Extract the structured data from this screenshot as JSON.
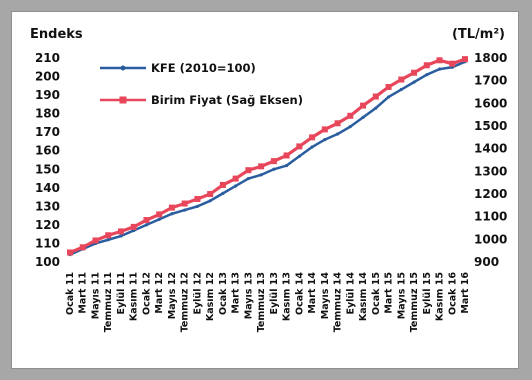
{
  "chart_data": {
    "type": "line",
    "ylabel": "Endeks",
    "y2label": "(TL/m²)",
    "ylim": [
      100,
      210
    ],
    "y_ticks": [
      100,
      110,
      120,
      130,
      140,
      150,
      160,
      170,
      180,
      190,
      200,
      210
    ],
    "y2lim": [
      900,
      1800
    ],
    "y2_ticks": [
      900,
      1000,
      1100,
      1200,
      1300,
      1400,
      1500,
      1600,
      1700,
      1800
    ],
    "x_tick_labels": [
      "Ocak 11",
      "Mart 11",
      "Mayıs 11",
      "Temmuz 11",
      "Eylül 11",
      "Kasım 11",
      "Ocak 12",
      "Mart 12",
      "Mayıs 12",
      "Temmuz 12",
      "Eylül 12",
      "Kasım 12",
      "Ocak 13",
      "Mart 13",
      "Mayıs 13",
      "Temmuz 13",
      "Eylül 13",
      "Kasım 13",
      "Ocak 14",
      "Mart 14",
      "Mayıs 14",
      "Temmuz 14",
      "Eylül 14",
      "Kasım 14",
      "Ocak 15",
      "Mart 15",
      "Mayıs 15",
      "Temmuz 15",
      "Eylül 15",
      "Kasım 15",
      "Ocak 16",
      "Mart 16"
    ],
    "legend_position": "top-left",
    "series": [
      {
        "name": "KFE (2010=100)",
        "axis": "left",
        "color": "#2a5d9f",
        "x": [
          "Ocak 11",
          "Mart 11",
          "Mayıs 11",
          "Temmuz 11",
          "Eylül 11",
          "Kasım 11",
          "Ocak 12",
          "Mart 12",
          "Mayıs 12",
          "Temmuz 12",
          "Eylül 12",
          "Kasım 12",
          "Ocak 13",
          "Mart 13",
          "Mayıs 13",
          "Temmuz 13",
          "Eylül 13",
          "Kasım 13",
          "Ocak 14",
          "Mart 14",
          "Mayıs 14",
          "Temmuz 14",
          "Eylül 14",
          "Kasım 14",
          "Ocak 15",
          "Mart 15",
          "Mayıs 15",
          "Temmuz 15",
          "Eylül 15",
          "Kasım 15",
          "Ocak 16",
          "Mart 16"
        ],
        "values": [
          104,
          107,
          110,
          112,
          114,
          117,
          120,
          123,
          126,
          128,
          130,
          133,
          137,
          141,
          145,
          147,
          150,
          152,
          157,
          162,
          166,
          169,
          173,
          178,
          183,
          189,
          193,
          197,
          201,
          204,
          205,
          208
        ]
      },
      {
        "name": "Birim Fiyat (Sağ Eksen)",
        "axis": "right",
        "color": "#e8475b",
        "x": [
          "Ocak 11",
          "Mart 11",
          "Mayıs 11",
          "Temmuz 11",
          "Eylül 11",
          "Kasım 11",
          "Ocak 12",
          "Mart 12",
          "Mayıs 12",
          "Temmuz 12",
          "Eylül 12",
          "Kasım 12",
          "Ocak 13",
          "Mart 13",
          "Mayıs 13",
          "Temmuz 13",
          "Eylül 13",
          "Kasım 13",
          "Ocak 14",
          "Mart 14",
          "Mayıs 14",
          "Temmuz 14",
          "Eylül 14",
          "Kasım 14",
          "Ocak 15",
          "Mart 15",
          "Mayıs 15",
          "Temmuz 15",
          "Eylül 15",
          "Kasım 15",
          "Ocak 16",
          "Mart 16"
        ],
        "values": [
          942,
          965,
          995,
          1018,
          1035,
          1055,
          1085,
          1110,
          1140,
          1158,
          1178,
          1200,
          1240,
          1268,
          1305,
          1322,
          1345,
          1370,
          1410,
          1450,
          1485,
          1512,
          1545,
          1590,
          1630,
          1672,
          1705,
          1735,
          1768,
          1790,
          1775,
          1795
        ]
      }
    ]
  }
}
